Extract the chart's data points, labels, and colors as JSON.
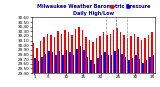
{
  "title": "Milwaukee Weather Barometric Pressure",
  "subtitle": "Daily High/Low",
  "high_values": [
    30.05,
    29.95,
    30.1,
    30.18,
    30.25,
    30.22,
    30.18,
    30.3,
    30.25,
    30.32,
    30.28,
    30.22,
    30.35,
    30.4,
    30.32,
    30.18,
    30.12,
    30.08,
    30.15,
    30.2,
    30.28,
    30.22,
    30.25,
    30.32,
    30.38,
    30.28,
    30.22,
    30.15,
    30.2,
    30.25,
    30.18,
    30.12,
    30.15,
    30.22,
    30.28
  ],
  "low_values": [
    29.72,
    29.65,
    29.75,
    29.82,
    29.88,
    29.85,
    29.78,
    29.88,
    29.8,
    29.9,
    29.85,
    29.8,
    29.92,
    29.98,
    29.9,
    29.75,
    29.68,
    29.6,
    29.72,
    29.78,
    29.85,
    29.78,
    29.8,
    29.88,
    29.92,
    29.82,
    29.75,
    29.68,
    29.72,
    29.78,
    29.7,
    29.62,
    29.68,
    29.75,
    29.8
  ],
  "high_color": "#ff0000",
  "low_color": "#0000ff",
  "ymin": 29.4,
  "ymax": 30.6,
  "ytick_values": [
    29.4,
    29.5,
    29.6,
    29.7,
    29.8,
    29.9,
    30.0,
    30.1,
    30.2,
    30.3,
    30.4,
    30.5,
    30.6
  ],
  "bg_color": "#ffffff",
  "dashed_region_starts": [
    21,
    24
  ],
  "bar_width": 0.42,
  "n_bars": 35,
  "x_tick_positions": [
    0,
    4,
    9,
    14,
    19,
    24,
    29,
    34
  ],
  "x_tick_labels": [
    "1",
    "5",
    "10",
    "15",
    "20",
    "25",
    "30",
    "35"
  ]
}
